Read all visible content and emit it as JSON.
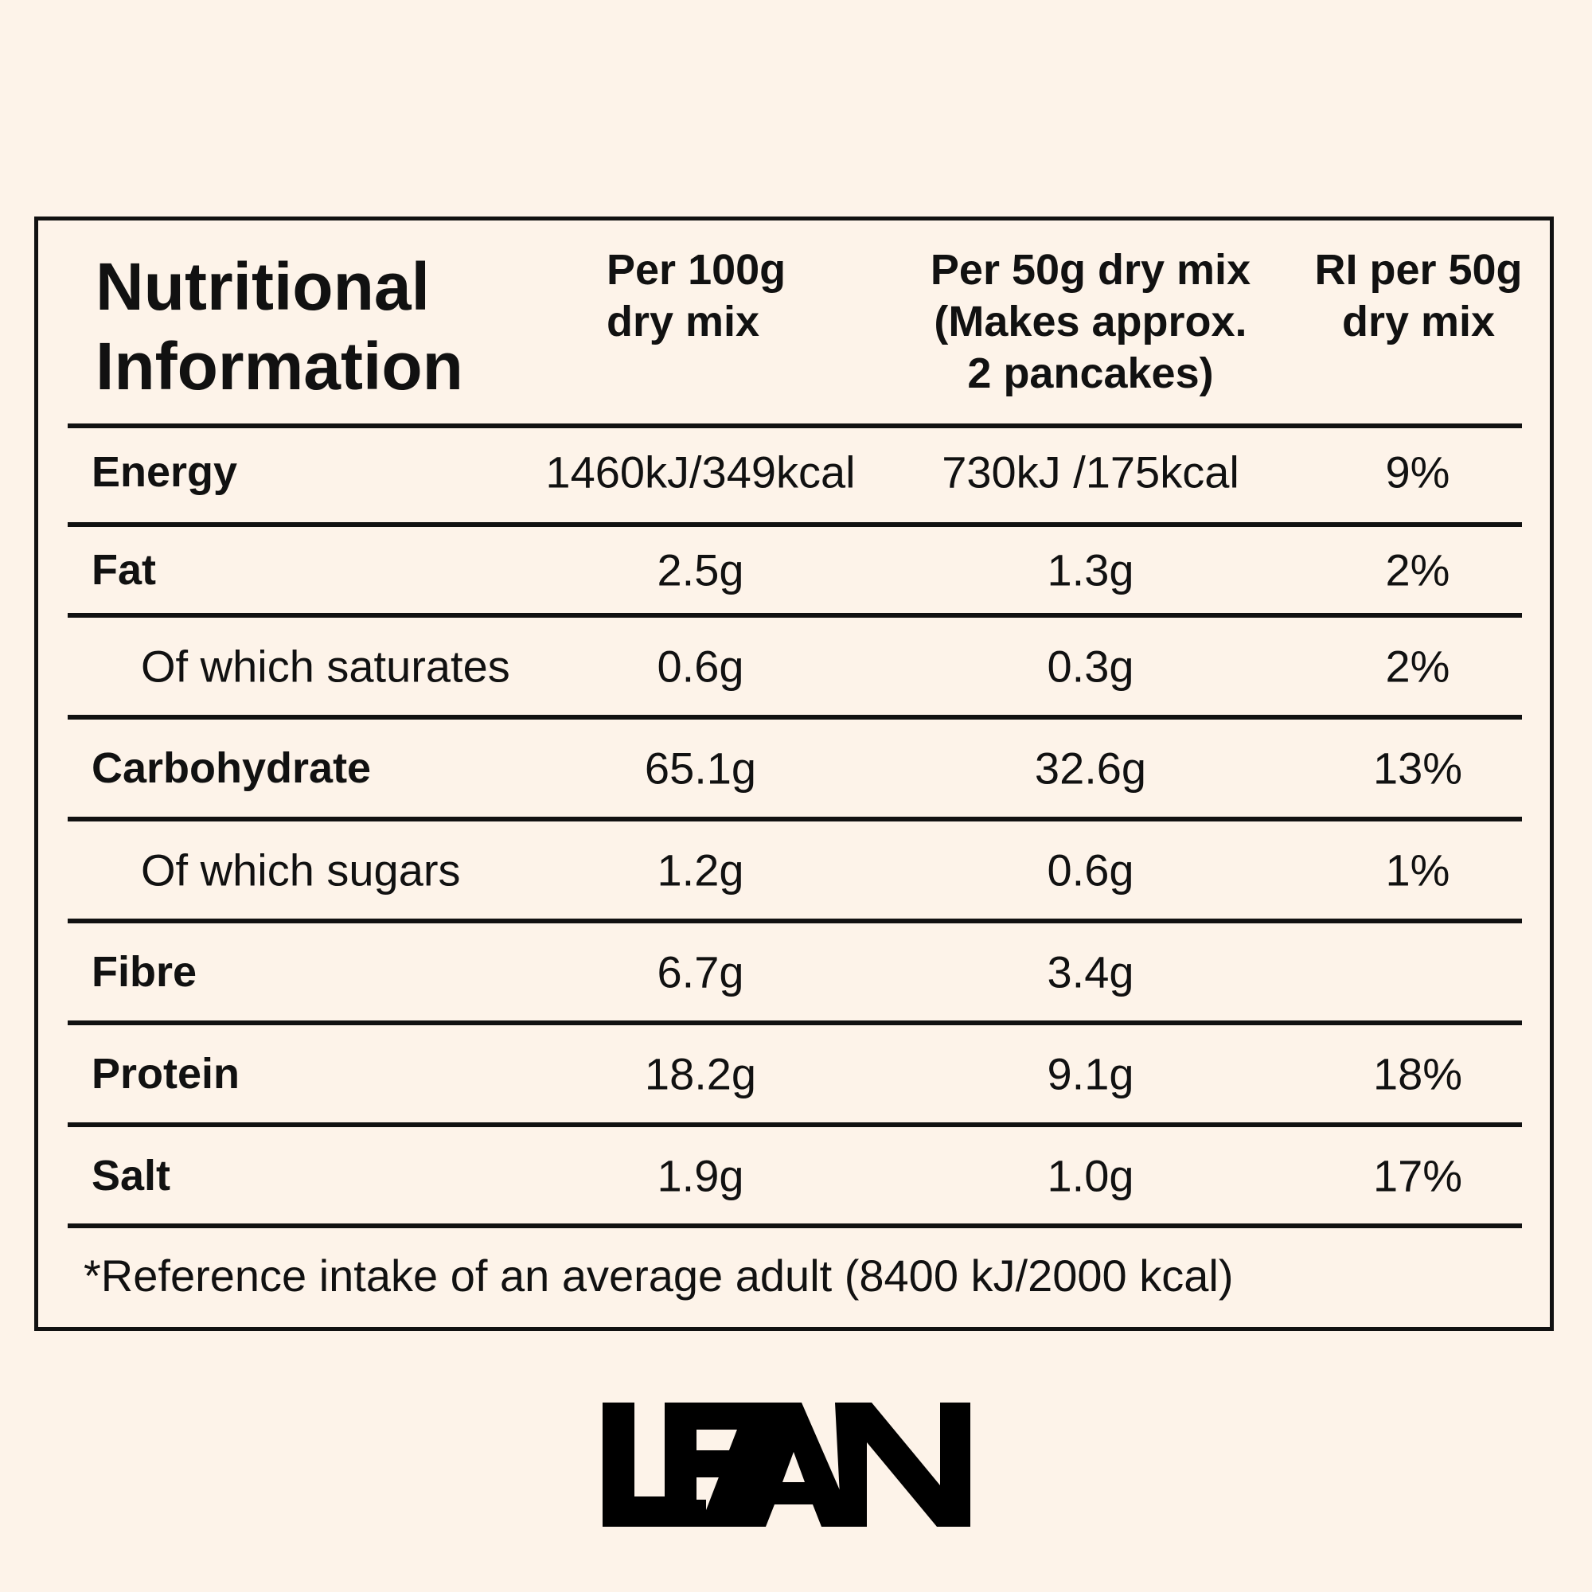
{
  "header": {
    "title_line1": "Nutritional",
    "title_line2": "Information",
    "col1": [
      "Per 100g",
      "dry mix"
    ],
    "col2": [
      "Per 50g dry mix",
      "(Makes approx.",
      "2 pancakes)"
    ],
    "col3": [
      "RI per 50g",
      "dry mix"
    ]
  },
  "rows": [
    {
      "label": "Energy",
      "per100": "1460kJ/349kcal",
      "per50": "730kJ /175kcal",
      "ri": "9%"
    },
    {
      "label": "Fat",
      "per100": "2.5g",
      "per50": "1.3g",
      "ri": "2%"
    },
    {
      "label": "Of which saturates",
      "per100": "0.6g",
      "per50": "0.3g",
      "ri": "2%"
    },
    {
      "label": "Carbohydrate",
      "per100": "65.1g",
      "per50": "32.6g",
      "ri": "13%"
    },
    {
      "label": "Of which sugars",
      "per100": "1.2g",
      "per50": "0.6g",
      "ri": "1%"
    },
    {
      "label": "Fibre",
      "per100": "6.7g",
      "per50": "3.4g",
      "ri": ""
    },
    {
      "label": "Protein",
      "per100": "18.2g",
      "per50": "9.1g",
      "ri": "18%"
    },
    {
      "label": "Salt",
      "per100": "1.9g",
      "per50": "1.0g",
      "ri": "17%"
    }
  ],
  "footnote": "*Reference intake of an average adult (8400 kJ/2000 kcal)",
  "logo": {
    "text": "LEAN",
    "color": "#000000"
  },
  "colors": {
    "background": "#fdf3e9",
    "ink": "#111111"
  }
}
